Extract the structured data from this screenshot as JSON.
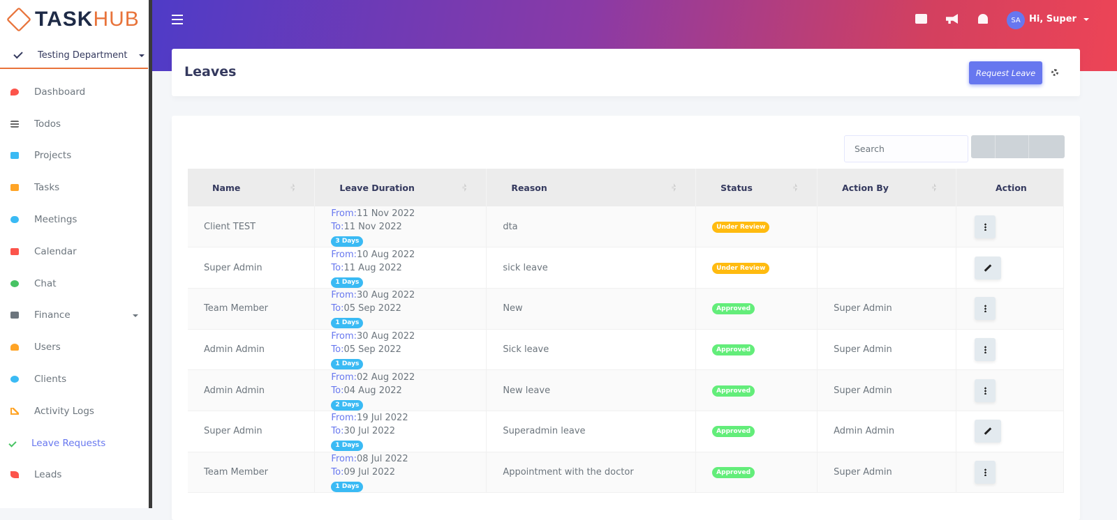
{
  "brand": {
    "part1": "TASK",
    "part2": "HUB"
  },
  "department": "Testing Department",
  "sidebar": [
    "Dashboard",
    "Todos",
    "Projects",
    "Tasks",
    "Meetings",
    "Calendar",
    "Chat",
    "Finance",
    "Users",
    "Clients",
    "Activity Logs",
    "Leave Requests",
    "Leads"
  ],
  "topbar": {
    "avatar": "SA",
    "greeting": "Hi, Super"
  },
  "page": {
    "title": "Leaves",
    "request_button": "Request Leave"
  },
  "table": {
    "search_placeholder": "Search",
    "columns": [
      "Name",
      "Leave Duration",
      "Reason",
      "Status",
      "Action By",
      "Action"
    ],
    "from_label": "From:",
    "to_label": "To:",
    "rows": [
      {
        "name": "Client TEST",
        "from": "11 Nov 2022",
        "to": "11 Nov 2022",
        "days": "3 Days",
        "reason": "dta",
        "status": "Under Review",
        "status_color": "#ffbb10",
        "action_by": "",
        "action_icon": "menu"
      },
      {
        "name": "Super Admin",
        "from": "10 Aug 2022",
        "to": "11 Aug 2022",
        "days": "1 Days",
        "reason": "sick leave",
        "status": "Under Review",
        "status_color": "#ffbb10",
        "action_by": "",
        "action_icon": "edit"
      },
      {
        "name": "Team Member",
        "from": "30 Aug 2022",
        "to": "05 Sep 2022",
        "days": "1 Days",
        "reason": "New",
        "status": "Approved",
        "status_color": "#63ed7a",
        "action_by": "Super Admin",
        "action_icon": "menu"
      },
      {
        "name": "Admin Admin",
        "from": "30 Aug 2022",
        "to": "05 Sep 2022",
        "days": "1 Days",
        "reason": "Sick leave",
        "status": "Approved",
        "status_color": "#63ed7a",
        "action_by": "Super Admin",
        "action_icon": "menu"
      },
      {
        "name": "Admin Admin",
        "from": "02 Aug 2022",
        "to": "04 Aug 2022",
        "days": "2 Days",
        "reason": "New leave",
        "status": "Approved",
        "status_color": "#63ed7a",
        "action_by": "Super Admin",
        "action_icon": "menu"
      },
      {
        "name": "Super Admin",
        "from": "19 Jul 2022",
        "to": "30 Jul 2022",
        "days": "1 Days",
        "reason": "Superadmin leave",
        "status": "Approved",
        "status_color": "#63ed7a",
        "action_by": "Admin Admin",
        "action_icon": "edit"
      },
      {
        "name": "Team Member",
        "from": "08 Jul 2022",
        "to": "09 Jul 2022",
        "days": "1 Days",
        "reason": "Appointment with the doctor",
        "status": "Approved",
        "status_color": "#63ed7a",
        "action_by": "Super Admin",
        "action_icon": "menu"
      }
    ]
  }
}
